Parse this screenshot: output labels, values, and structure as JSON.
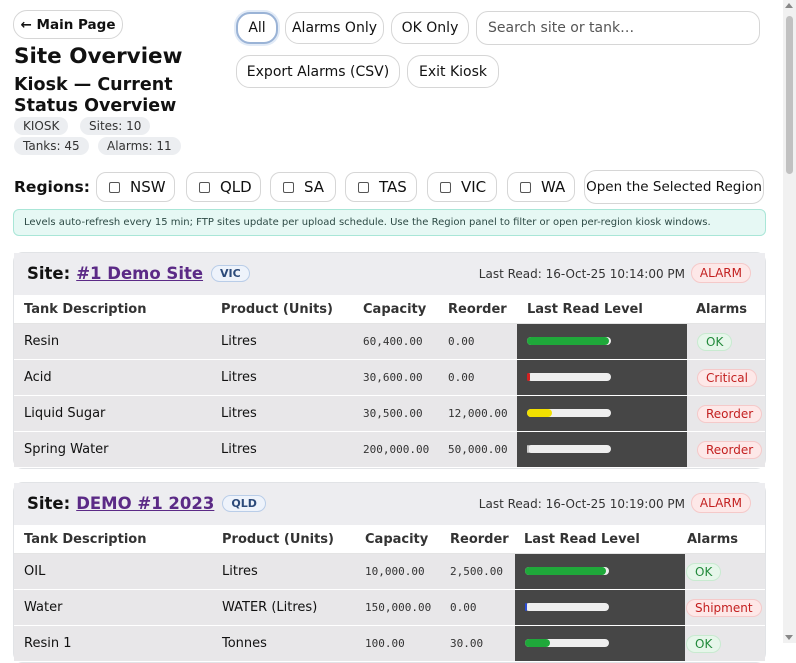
{
  "header": {
    "main_page_label": "← Main Page",
    "title": "Site Overview",
    "subtitle": "Kiosk — Current Status Overview",
    "chips": [
      "KIOSK",
      "Sites: 10",
      "Tanks: 45",
      "Alarms: 11"
    ]
  },
  "filters": {
    "all": "All",
    "alarms_only": "Alarms Only",
    "ok_only": "OK Only",
    "search_placeholder": "Search site or tank…",
    "export": "Export Alarms (CSV)",
    "exit": "Exit Kiosk"
  },
  "regions": {
    "label": "Regions:",
    "items": [
      "NSW",
      "QLD",
      "SA",
      "TAS",
      "VIC",
      "WA"
    ],
    "open_button": "Open the Selected Region"
  },
  "info_text": "Levels auto-refresh every 15 min; FTP sites update per upload schedule. Use the Region panel to filter or open per-region kiosk windows.",
  "columns": [
    "Tank Description",
    "Product (Units)",
    "Capacity",
    "Reorder",
    "Last Read Level",
    "Alarms"
  ],
  "sites": [
    {
      "label": "Site:",
      "name": "#1 Demo Site",
      "region": "VIC",
      "last_read": "Last Read: 16-Oct-25 10:14:00 PM",
      "status": "ALARM",
      "rows": [
        {
          "tank": "Resin",
          "product": "Litres",
          "capacity": "60,400.00",
          "reorder": "0.00",
          "level": 0.98,
          "bar_color": "#1fa83a",
          "alarm": "OK",
          "alarm_type": "ok"
        },
        {
          "tank": "Acid",
          "product": "Litres",
          "capacity": "30,600.00",
          "reorder": "0.00",
          "level": 0.03,
          "bar_color": "#d42020",
          "alarm": "Critical",
          "alarm_type": "bad"
        },
        {
          "tank": "Liquid Sugar",
          "product": "Litres",
          "capacity": "30,500.00",
          "reorder": "12,000.00",
          "level": 0.3,
          "bar_color": "#f2e000",
          "alarm": "Reorder",
          "alarm_type": "bad"
        },
        {
          "tank": "Spring Water",
          "product": "Litres",
          "capacity": "200,000.00",
          "reorder": "50,000.00",
          "level": 0.0,
          "bar_color": "#cccccc",
          "alarm": "Reorder",
          "alarm_type": "bad"
        }
      ]
    },
    {
      "label": "Site:",
      "name": "DEMO #1 2023",
      "region": "QLD",
      "last_read": "Last Read: 16-Oct-25 10:19:00 PM",
      "status": "ALARM",
      "rows": [
        {
          "tank": "OIL",
          "product": "Litres",
          "capacity": "10,000.00",
          "reorder": "2,500.00",
          "level": 0.97,
          "bar_color": "#1fa83a",
          "alarm": "OK",
          "alarm_type": "ok"
        },
        {
          "tank": "Water",
          "product": "WATER (Litres)",
          "capacity": "150,000.00",
          "reorder": "0.00",
          "level": 0.02,
          "bar_color": "#2a4bd4",
          "alarm": "Shipment",
          "alarm_type": "bad"
        },
        {
          "tank": "Resin 1",
          "product": "Tonnes",
          "capacity": "100.00",
          "reorder": "30.00",
          "level": 0.3,
          "bar_color": "#1fa83a",
          "alarm": "OK",
          "alarm_type": "ok"
        }
      ]
    }
  ],
  "colors": {
    "link": "#5b2a86",
    "alarm_red": "#c32020",
    "ok_green": "#228a3b",
    "info_bg": "#e6f8f4"
  }
}
